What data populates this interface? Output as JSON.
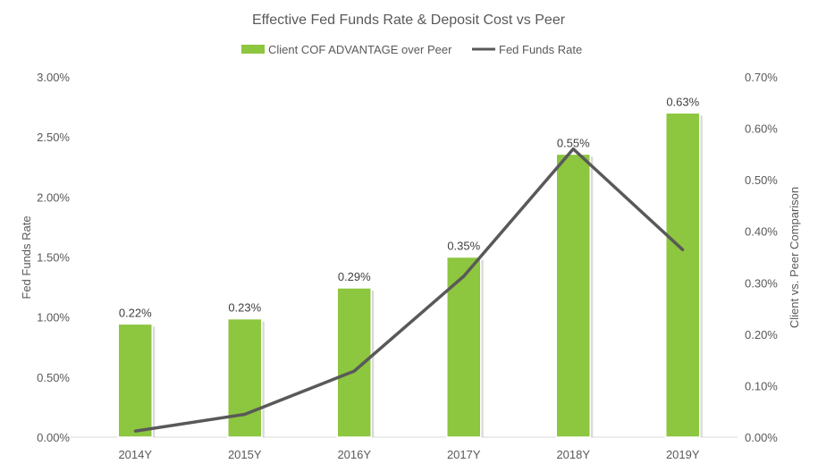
{
  "chart_data": {
    "type": "bar",
    "title": "Effective Fed Funds Rate & Deposit Cost vs Peer",
    "categories": [
      "2014Y",
      "2015Y",
      "2016Y",
      "2017Y",
      "2018Y",
      "2019Y"
    ],
    "series": [
      {
        "name": "Client COF ADVANTAGE over Peer",
        "type": "bar",
        "axis": "right",
        "values": [
          0.22,
          0.23,
          0.29,
          0.35,
          0.55,
          0.63
        ],
        "labels": [
          "0.22%",
          "0.23%",
          "0.29%",
          "0.35%",
          "0.55%",
          "0.63%"
        ],
        "color": "#8DC63F"
      },
      {
        "name": "Fed Funds Rate",
        "type": "line",
        "axis": "left",
        "values": [
          0.05,
          0.19,
          0.55,
          1.34,
          2.4,
          1.56
        ],
        "color": "#595959"
      }
    ],
    "ylabel": "Fed Funds Rate",
    "y2label": "Client vs. Peer Comparison",
    "ylim": [
      0,
      3.0
    ],
    "y2lim": [
      0,
      0.7
    ],
    "yticks": [
      "0.00%",
      "0.50%",
      "1.00%",
      "1.50%",
      "2.00%",
      "2.50%",
      "3.00%"
    ],
    "y2ticks": [
      "0.00%",
      "0.10%",
      "0.20%",
      "0.30%",
      "0.40%",
      "0.50%",
      "0.60%",
      "0.70%"
    ],
    "legend": "top",
    "grid": false
  }
}
